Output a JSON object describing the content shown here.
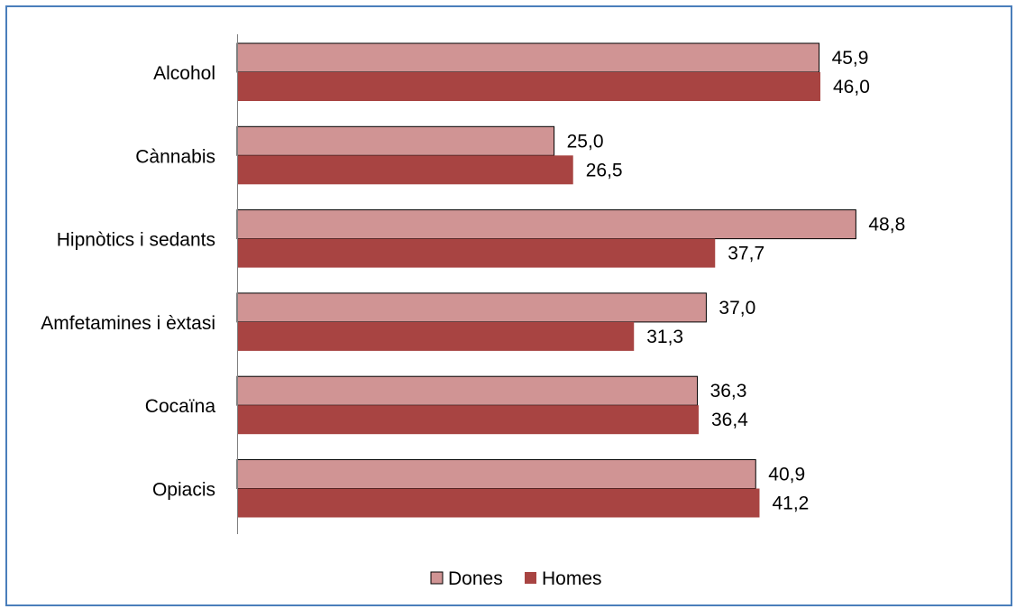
{
  "chart_data": {
    "type": "bar",
    "orientation": "horizontal",
    "categories": [
      "Alcohol",
      "Cànnabis",
      "Hipnòtics i sedants",
      "Amfetamines i èxtasi",
      "Cocaïna",
      "Opiacis"
    ],
    "series": [
      {
        "name": "Dones",
        "values": [
          45.9,
          25.0,
          48.8,
          37.0,
          36.3,
          40.9
        ],
        "labels": [
          "45,9",
          "25,0",
          "48,8",
          "37,0",
          "36,3",
          "40,9"
        ],
        "color": "#d09494"
      },
      {
        "name": "Homes",
        "values": [
          46.0,
          26.5,
          37.7,
          31.3,
          36.4,
          41.2
        ],
        "labels": [
          "46,0",
          "26,5",
          "37,7",
          "31,3",
          "36,4",
          "41,2"
        ],
        "color": "#a84442"
      }
    ],
    "title": "",
    "xlabel": "",
    "ylabel": "",
    "xlim": [
      0,
      52
    ],
    "grid": false,
    "legend": "bottom"
  }
}
